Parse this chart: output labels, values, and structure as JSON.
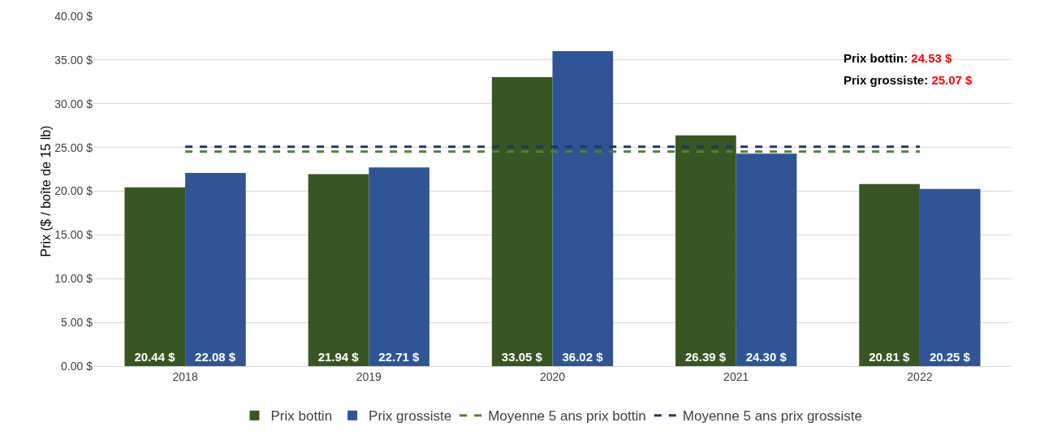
{
  "chart_data": {
    "type": "bar",
    "ylabel": "Prix ($ / boîte de 15 lb)",
    "categories": [
      "2018",
      "2019",
      "2020",
      "2021",
      "2022"
    ],
    "series": [
      {
        "name": "Prix bottin",
        "color": "#375623",
        "values": [
          20.44,
          21.94,
          33.05,
          26.39,
          20.81
        ],
        "value_labels": [
          "20.44 $",
          "21.94 $",
          "33.05 $",
          "26.39 $",
          "20.81 $"
        ]
      },
      {
        "name": "Prix grossiste",
        "color": "#2f5597",
        "values": [
          22.08,
          22.71,
          36.02,
          24.3,
          20.25
        ],
        "value_labels": [
          "22.08 $",
          "22.71 $",
          "36.02 $",
          "24.30 $",
          "20.25 $"
        ]
      },
      {
        "name": "Moyenne 5 ans prix bottin",
        "type": "line",
        "line_style": "dashed",
        "marker": "none",
        "color": "#548235",
        "values": [
          24.53,
          24.53,
          24.53,
          24.53,
          24.53
        ]
      },
      {
        "name": "Moyenne 5 ans prix grossiste",
        "type": "line",
        "line_style": "dashed",
        "marker": "none",
        "color": "#203864",
        "values": [
          25.07,
          25.07,
          25.07,
          25.07,
          25.07
        ]
      }
    ],
    "ylim": [
      0,
      40
    ],
    "yticks": [
      {
        "value": 0,
        "label": "0.00 $"
      },
      {
        "value": 5,
        "label": "5.00 $"
      },
      {
        "value": 10,
        "label": "10.00 $"
      },
      {
        "value": 15,
        "label": "15.00 $"
      },
      {
        "value": 20,
        "label": "20.00 $"
      },
      {
        "value": 25,
        "label": "25.00 $"
      },
      {
        "value": 30,
        "label": "30.00 $"
      },
      {
        "value": 35,
        "label": "35.00 $"
      },
      {
        "value": 40,
        "label": "40.00 $"
      }
    ],
    "grid": "y",
    "legend": "bottom",
    "annotations": [
      "Prix bottin: 24.53 $",
      "Prix grossiste: 25.07 $"
    ]
  }
}
